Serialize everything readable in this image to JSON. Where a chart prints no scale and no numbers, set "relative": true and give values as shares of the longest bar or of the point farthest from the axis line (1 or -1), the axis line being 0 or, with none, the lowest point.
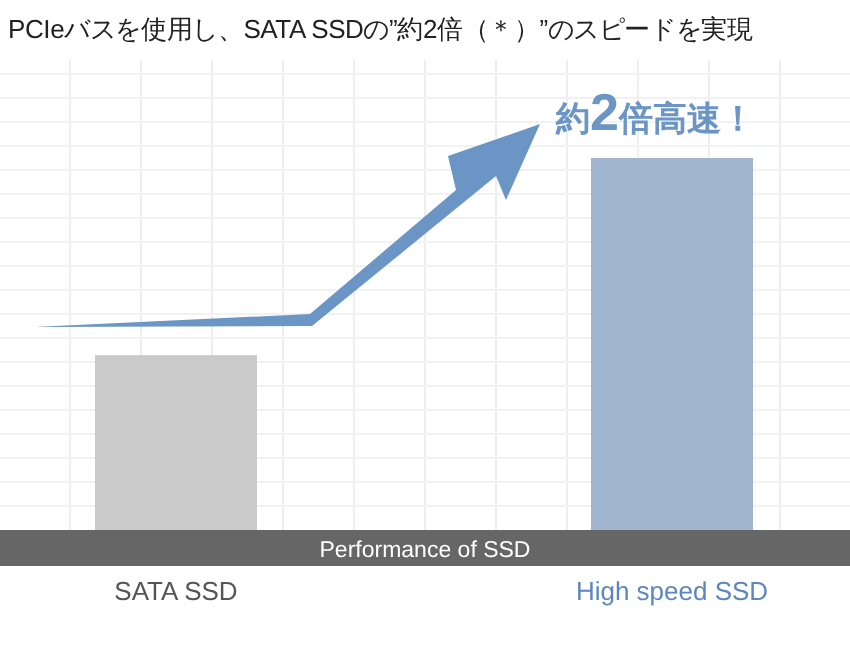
{
  "chart_data": {
    "type": "bar",
    "title": "PCIeバスを使用し、SATA SSDの”約2倍（＊）”のスピードを実現",
    "xlabel": "Performance of SSD",
    "categories": [
      "SATA SSD",
      "High speed SSD"
    ],
    "values": [
      0.47,
      1
    ],
    "colors": [
      "#cacaca",
      "#a2b5cf"
    ],
    "relative": true,
    "grid": true,
    "annotations": [
      "約2倍高速！"
    ]
  }
}
